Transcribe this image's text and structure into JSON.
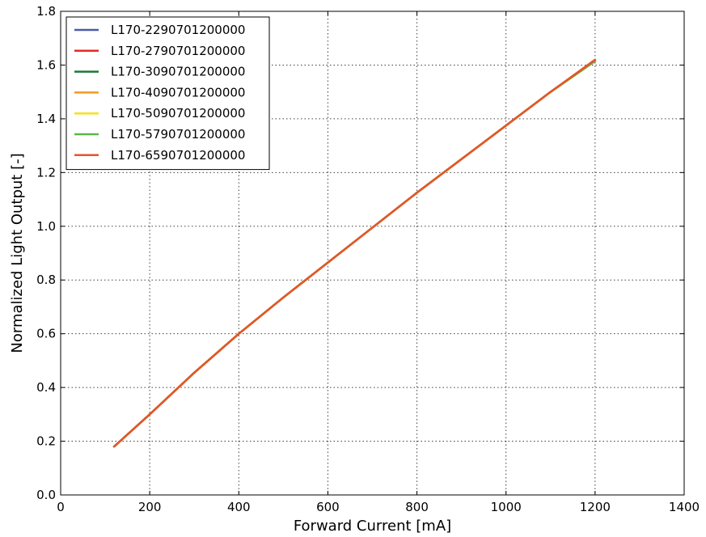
{
  "chart_data": {
    "type": "line",
    "title": "",
    "xlabel": "Forward Current [mA]",
    "ylabel": "Normalized Light Output [-]",
    "xlim": [
      0,
      1400
    ],
    "ylim": [
      0.0,
      1.8
    ],
    "xticks": [
      0,
      200,
      400,
      600,
      800,
      1000,
      1200,
      1400
    ],
    "yticks": [
      0.0,
      0.2,
      0.4,
      0.6,
      0.8,
      1.0,
      1.2,
      1.4,
      1.6,
      1.8
    ],
    "xtick_labels": [
      "0",
      "200",
      "400",
      "600",
      "800",
      "1000",
      "1200",
      "1400"
    ],
    "ytick_labels": [
      "0.0",
      "0.2",
      "0.4",
      "0.6",
      "0.8",
      "1.0",
      "1.2",
      "1.4",
      "1.6",
      "1.8"
    ],
    "grid": true,
    "legend_position": "top-left",
    "series": [
      {
        "name": "L170-2290701200000",
        "color": "#4a5ca8",
        "x": [
          120,
          200,
          300,
          400,
          500,
          600,
          700,
          800,
          900,
          1000,
          1100,
          1200
        ],
        "y": [
          0.18,
          0.3,
          0.455,
          0.6,
          0.735,
          0.865,
          0.995,
          1.125,
          1.25,
          1.375,
          1.5,
          1.615
        ]
      },
      {
        "name": "L170-2790701200000",
        "color": "#e32b24",
        "x": [
          120,
          200,
          300,
          400,
          500,
          600,
          700,
          800,
          900,
          1000,
          1100,
          1200
        ],
        "y": [
          0.18,
          0.3,
          0.455,
          0.6,
          0.735,
          0.865,
          0.995,
          1.125,
          1.25,
          1.375,
          1.5,
          1.615
        ]
      },
      {
        "name": "L170-3090701200000",
        "color": "#1a7a3a",
        "x": [
          120,
          200,
          300,
          400,
          500,
          600,
          700,
          800,
          900,
          1000,
          1100,
          1200
        ],
        "y": [
          0.18,
          0.3,
          0.455,
          0.6,
          0.735,
          0.865,
          0.995,
          1.125,
          1.25,
          1.375,
          1.5,
          1.615
        ]
      },
      {
        "name": "L170-4090701200000",
        "color": "#f39a1e",
        "x": [
          120,
          200,
          300,
          400,
          500,
          600,
          700,
          800,
          900,
          1000,
          1100,
          1200
        ],
        "y": [
          0.18,
          0.3,
          0.455,
          0.6,
          0.735,
          0.865,
          0.995,
          1.125,
          1.25,
          1.375,
          1.5,
          1.615
        ]
      },
      {
        "name": "L170-5090701200000",
        "color": "#f4e21a",
        "x": [
          120,
          200,
          300,
          400,
          500,
          600,
          700,
          800,
          900,
          1000,
          1100,
          1200
        ],
        "y": [
          0.18,
          0.3,
          0.455,
          0.6,
          0.735,
          0.865,
          0.995,
          1.125,
          1.25,
          1.375,
          1.5,
          1.615
        ]
      },
      {
        "name": "L170-5790701200000",
        "color": "#5ab848",
        "x": [
          120,
          200,
          300,
          400,
          500,
          600,
          700,
          800,
          900,
          1000,
          1100,
          1200
        ],
        "y": [
          0.18,
          0.3,
          0.455,
          0.6,
          0.735,
          0.865,
          0.995,
          1.125,
          1.25,
          1.375,
          1.5,
          1.615
        ]
      },
      {
        "name": "L170-6590701200000",
        "color": "#e8532a",
        "x": [
          120,
          200,
          300,
          400,
          500,
          600,
          700,
          800,
          900,
          1000,
          1100,
          1200
        ],
        "y": [
          0.18,
          0.3,
          0.455,
          0.6,
          0.735,
          0.865,
          0.995,
          1.125,
          1.25,
          1.375,
          1.5,
          1.62
        ]
      }
    ]
  }
}
